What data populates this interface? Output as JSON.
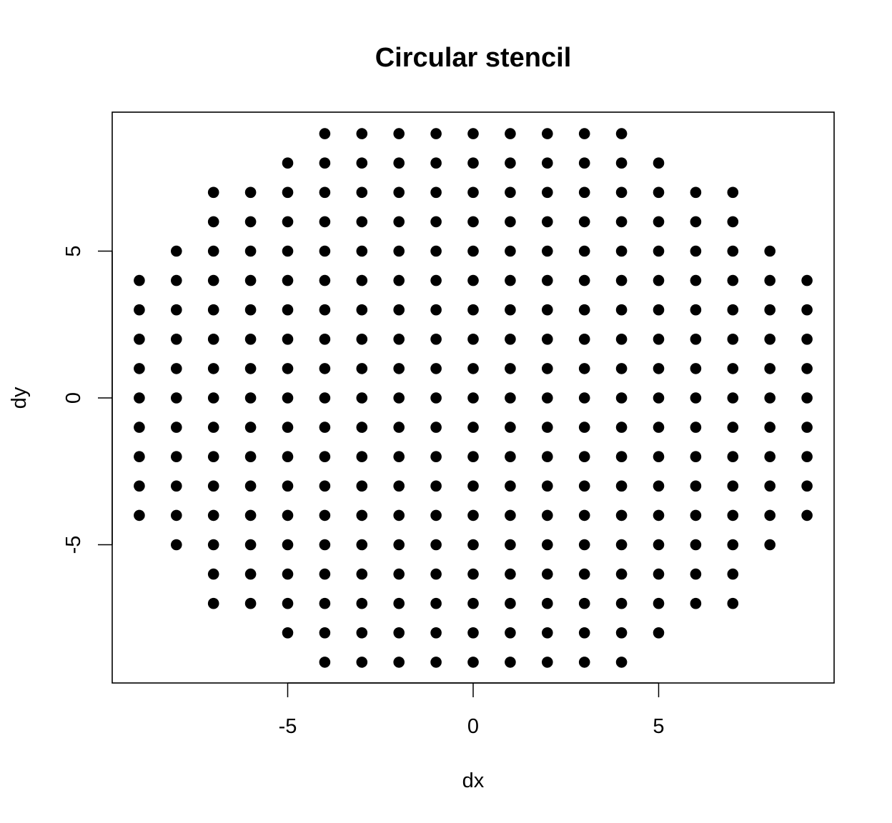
{
  "chart_data": {
    "type": "scatter",
    "title": "Circular stencil",
    "xlabel": "dx",
    "ylabel": "dy",
    "xlim": [
      -9,
      9
    ],
    "ylim": [
      -9,
      9
    ],
    "x_ticks": [
      -5,
      0,
      5
    ],
    "y_ticks": [
      -5,
      0,
      5
    ],
    "x_tick_labels": [
      "-5",
      "0",
      "5"
    ],
    "y_tick_labels": [
      "-5",
      "0",
      "5"
    ],
    "grid": false,
    "legend": "none",
    "point_color": "#000000",
    "rows": [
      {
        "dy": 9,
        "dx_from": -4,
        "dx_to": 4
      },
      {
        "dy": 8,
        "dx_from": -5,
        "dx_to": 5
      },
      {
        "dy": 7,
        "dx_from": -7,
        "dx_to": 7
      },
      {
        "dy": 6,
        "dx_from": -7,
        "dx_to": 7
      },
      {
        "dy": 5,
        "dx_from": -8,
        "dx_to": 8
      },
      {
        "dy": 4,
        "dx_from": -9,
        "dx_to": 9
      },
      {
        "dy": 3,
        "dx_from": -9,
        "dx_to": 9
      },
      {
        "dy": 2,
        "dx_from": -9,
        "dx_to": 9
      },
      {
        "dy": 1,
        "dx_from": -9,
        "dx_to": 9
      },
      {
        "dy": 0,
        "dx_from": -9,
        "dx_to": 9
      },
      {
        "dy": -1,
        "dx_from": -9,
        "dx_to": 9
      },
      {
        "dy": -2,
        "dx_from": -9,
        "dx_to": 9
      },
      {
        "dy": -3,
        "dx_from": -9,
        "dx_to": 9
      },
      {
        "dy": -4,
        "dx_from": -9,
        "dx_to": 9
      },
      {
        "dy": -5,
        "dx_from": -8,
        "dx_to": 8
      },
      {
        "dy": -6,
        "dx_from": -7,
        "dx_to": 7
      },
      {
        "dy": -7,
        "dx_from": -7,
        "dx_to": 7
      },
      {
        "dy": -8,
        "dx_from": -5,
        "dx_to": 5
      },
      {
        "dy": -9,
        "dx_from": -4,
        "dx_to": 4
      }
    ]
  }
}
